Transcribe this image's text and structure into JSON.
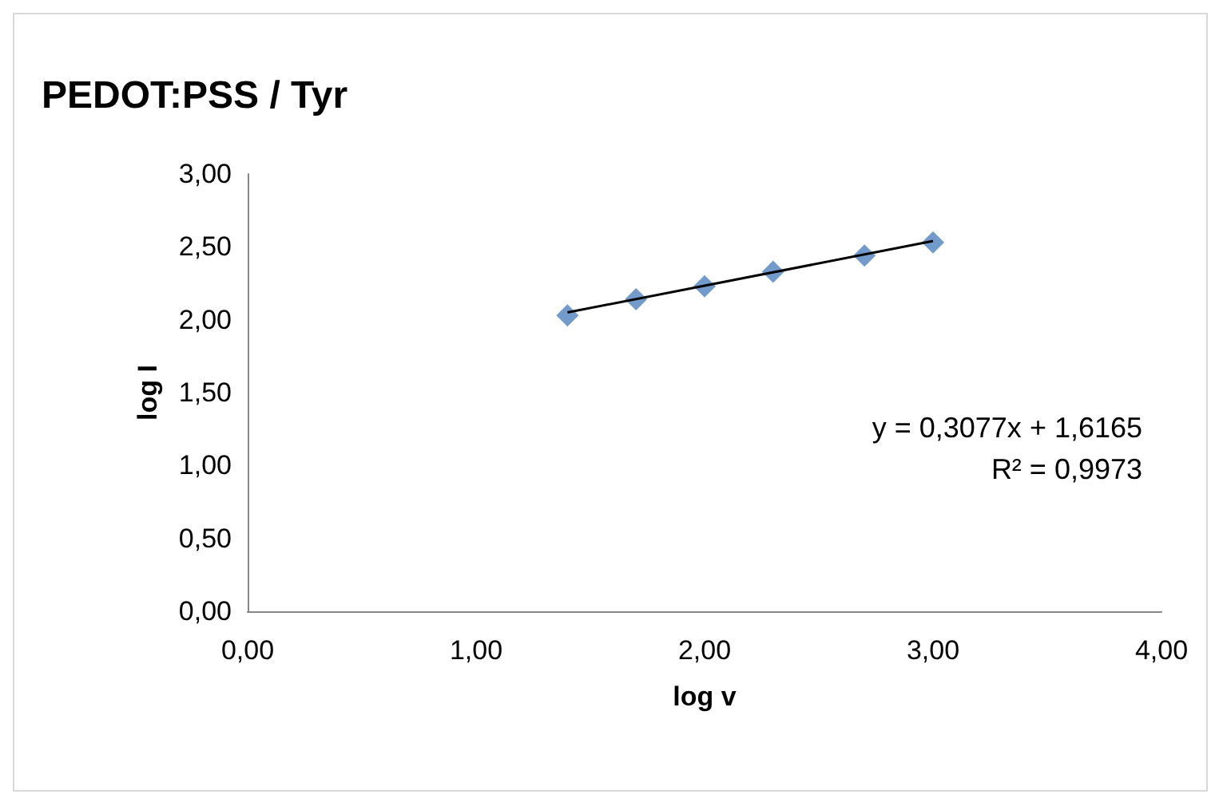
{
  "chart_data": {
    "type": "scatter",
    "title": "PEDOT:PSS / Tyr",
    "xlabel": "log v",
    "ylabel": "log I",
    "x": [
      1.4,
      1.7,
      2.0,
      2.3,
      2.7,
      3.0
    ],
    "series": [
      {
        "color": "#4f81bd",
        "values": [
          2.03,
          2.14,
          2.23,
          2.33,
          2.44,
          2.53
        ],
        "marker": "diamond"
      },
      {
        "type": "line",
        "color": "#000000",
        "x": [
          1.4,
          3.0
        ],
        "values": [
          2.05,
          2.54
        ],
        "marker": "none"
      }
    ],
    "xlim": [
      0,
      4
    ],
    "xticks": [
      {
        "value": 0,
        "label": "0,00"
      },
      {
        "value": 1,
        "label": "1,00"
      },
      {
        "value": 2,
        "label": "2,00"
      },
      {
        "value": 3,
        "label": "3,00"
      },
      {
        "value": 4,
        "label": "4,00"
      }
    ],
    "ylim": [
      0,
      3
    ],
    "yticks": [
      {
        "value": 0,
        "label": "0,00"
      },
      {
        "value": 0.5,
        "label": "0,50"
      },
      {
        "value": 1,
        "label": "1,00"
      },
      {
        "value": 1.5,
        "label": "1,50"
      },
      {
        "value": 2,
        "label": "2,00"
      },
      {
        "value": 2.5,
        "label": "2,50"
      },
      {
        "value": 3,
        "label": "3,00"
      }
    ],
    "annotations": [
      "y = 0,3077x + 1,6165",
      "R² = 0,9973"
    ],
    "grid": false
  }
}
